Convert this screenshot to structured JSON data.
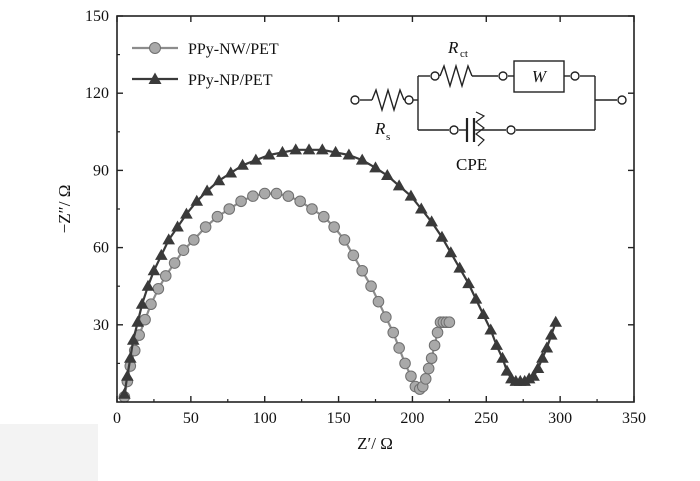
{
  "chart_data": {
    "type": "scatter",
    "title": "",
    "xlabel": "Z′/ Ω",
    "ylabel": "−Z″/ Ω",
    "xlim": [
      0,
      350
    ],
    "ylim": [
      0,
      150
    ],
    "x_ticks": [
      0,
      50,
      100,
      150,
      200,
      250,
      300,
      350
    ],
    "y_ticks": [
      30,
      60,
      90,
      120,
      150
    ],
    "grid": false,
    "legend_position": "top-left",
    "series": [
      {
        "name": "PPy-NW/PET",
        "marker": "circle",
        "color": "#8c8c8c",
        "x": [
          5,
          7,
          9,
          12,
          15,
          19,
          23,
          28,
          33,
          39,
          45,
          52,
          60,
          68,
          76,
          84,
          92,
          100,
          108,
          116,
          124,
          132,
          140,
          147,
          154,
          160,
          166,
          172,
          177,
          182,
          187,
          191,
          195,
          199,
          202,
          205,
          207,
          209,
          211,
          213,
          215,
          217,
          219,
          221,
          223,
          225
        ],
        "y": [
          2,
          8,
          14,
          20,
          26,
          32,
          38,
          44,
          49,
          54,
          59,
          63,
          68,
          72,
          75,
          78,
          80,
          81,
          81,
          80,
          78,
          75,
          72,
          68,
          63,
          57,
          51,
          45,
          39,
          33,
          27,
          21,
          15,
          10,
          6,
          5,
          6,
          9,
          13,
          17,
          22,
          27,
          31,
          31,
          31,
          31
        ]
      },
      {
        "name": "PPy-NP/PET",
        "marker": "triangle",
        "color": "#3a3a3a",
        "x": [
          5,
          7,
          9,
          11,
          14,
          17,
          21,
          25,
          30,
          35,
          41,
          47,
          54,
          61,
          69,
          77,
          85,
          94,
          103,
          112,
          121,
          130,
          139,
          148,
          157,
          166,
          175,
          183,
          191,
          199,
          206,
          213,
          220,
          226,
          232,
          238,
          243,
          248,
          253,
          257,
          261,
          264,
          267,
          270,
          273,
          276,
          279,
          282,
          285,
          288,
          291,
          294,
          297
        ],
        "y": [
          3,
          10,
          17,
          24,
          31,
          38,
          45,
          51,
          57,
          63,
          68,
          73,
          78,
          82,
          86,
          89,
          92,
          94,
          96,
          97,
          98,
          98,
          98,
          97,
          96,
          94,
          91,
          88,
          84,
          80,
          75,
          70,
          64,
          58,
          52,
          46,
          40,
          34,
          28,
          22,
          17,
          12,
          9,
          8,
          8,
          8,
          9,
          10,
          13,
          17,
          21,
          26,
          31
        ]
      }
    ]
  },
  "circuit": {
    "rct_label": "R",
    "rct_sub": "ct",
    "w_label": "W",
    "rs_label": "R",
    "rs_sub": "s",
    "cpe_label": "CPE"
  }
}
